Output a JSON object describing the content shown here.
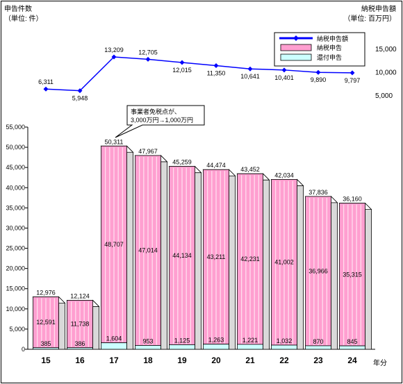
{
  "chart_data": {
    "type": "bar",
    "categories": [
      "15",
      "16",
      "17",
      "18",
      "19",
      "20",
      "21",
      "22",
      "23",
      "24"
    ],
    "x_unit": "年分",
    "left_axis": {
      "label": "申告件数",
      "unit": "（単位: 件）",
      "min": 0,
      "max": 55000,
      "step": 5000,
      "ticks": [
        "0",
        "5,000",
        "10,000",
        "15,000",
        "20,000",
        "25,000",
        "30,000",
        "35,000",
        "40,000",
        "45,000",
        "50,000",
        "55,000"
      ]
    },
    "right_axis": {
      "label": "納税申告額",
      "unit": "（単位: 百万円）",
      "ticks": [
        "5,000",
        "10,000",
        "15,000"
      ],
      "tick_values": [
        5000,
        10000,
        15000
      ]
    },
    "series": [
      {
        "name": "納税申告額",
        "kind": "line",
        "axis": "right",
        "color": "#0000ff",
        "values": [
          6311,
          5948,
          13209,
          12705,
          12015,
          11350,
          10641,
          10401,
          9890,
          9797
        ],
        "labels": [
          "6,311",
          "5,948",
          "13,209",
          "12,705",
          "12,015",
          "11,350",
          "10,641",
          "10,401",
          "9,890",
          "9,797"
        ]
      },
      {
        "name": "納税申告",
        "kind": "bar",
        "axis": "left",
        "color": "#ff9fd0",
        "values": [
          12591,
          11738,
          48707,
          47014,
          44134,
          43211,
          42231,
          41002,
          36966,
          35315
        ],
        "labels": [
          "12,591",
          "11,738",
          "48,707",
          "47,014",
          "44,134",
          "43,211",
          "42,231",
          "41,002",
          "36,966",
          "35,315"
        ]
      },
      {
        "name": "還付申告",
        "kind": "bar",
        "axis": "left",
        "color": "#ccffff",
        "values": [
          385,
          386,
          1604,
          953,
          1125,
          1263,
          1221,
          1032,
          870,
          845
        ],
        "labels": [
          "385",
          "386",
          "1,604",
          "953",
          "1,125",
          "1,263",
          "1,221",
          "1,032",
          "870",
          "845"
        ]
      }
    ],
    "totals": {
      "values": [
        12976,
        12124,
        50311,
        47967,
        45259,
        44474,
        43452,
        42034,
        37836,
        36160
      ],
      "labels": [
        "12,976",
        "12,124",
        "50,311",
        "47,967",
        "45,259",
        "44,474",
        "43,452",
        "42,034",
        "37,836",
        "36,160"
      ]
    },
    "annotation": {
      "lines": [
        "事業者免税点が、",
        "3,000万円→1,000万円"
      ],
      "category": "17"
    },
    "legend_position": "top-right",
    "grid": false
  }
}
